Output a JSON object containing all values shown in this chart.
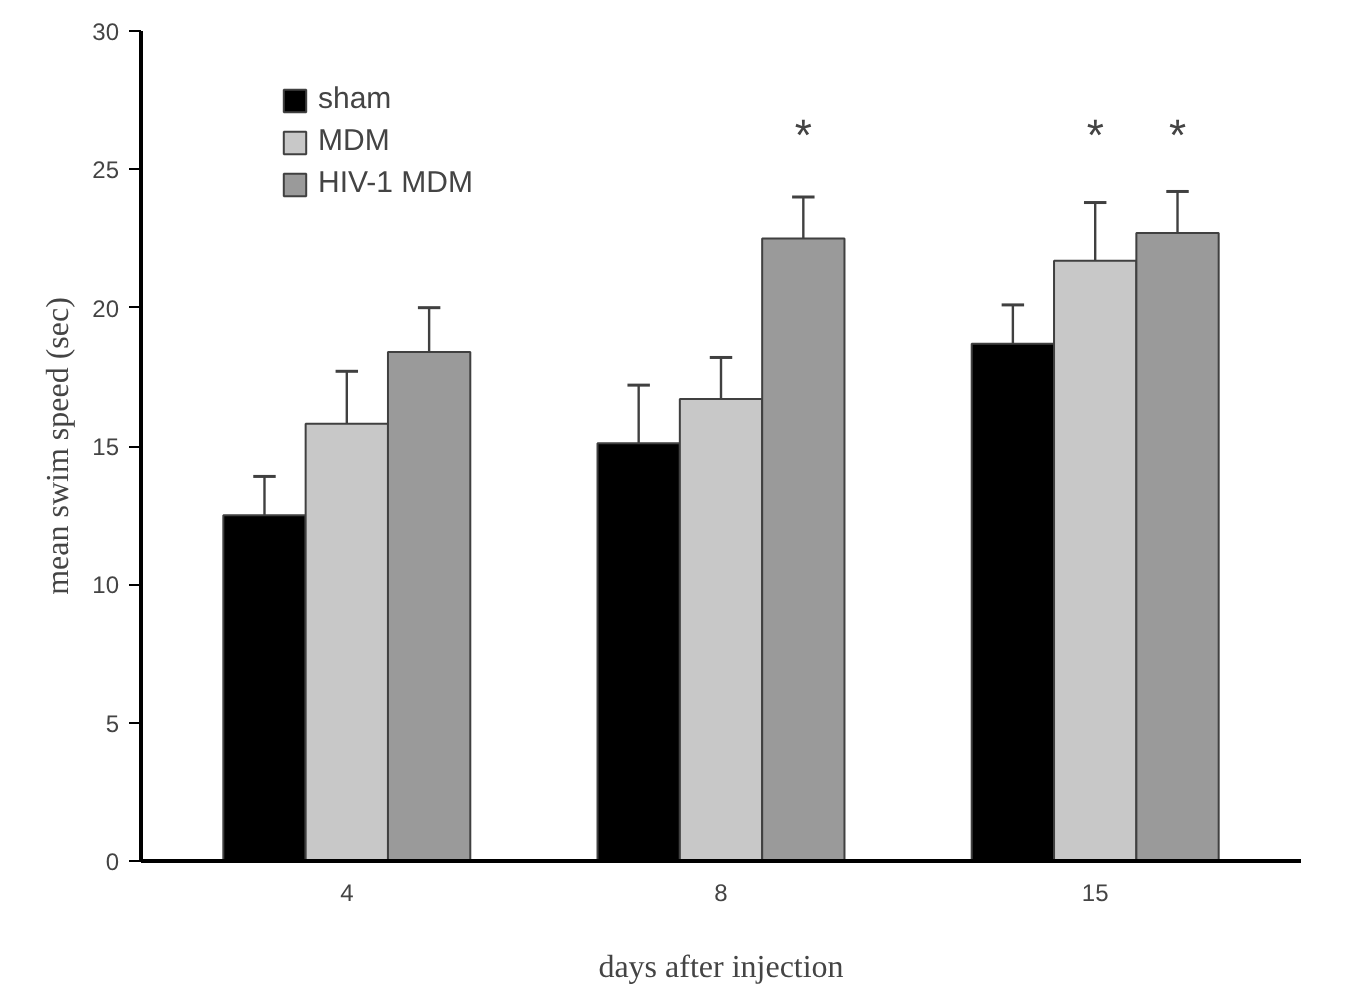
{
  "chart_data": {
    "type": "bar",
    "xlabel": "days after injection",
    "ylabel": "mean swim speed (sec)",
    "categories": [
      "4",
      "8",
      "15"
    ],
    "series": [
      {
        "name": "sham",
        "color": "#000000",
        "values": [
          12.5,
          15.1,
          18.7
        ],
        "errors": [
          [
            12.5,
            13.9
          ],
          [
            15.1,
            17.2
          ],
          [
            18.7,
            20.1
          ]
        ]
      },
      {
        "name": "MDM",
        "color": "#c8c8c8",
        "values": [
          15.8,
          16.7,
          21.7
        ],
        "errors": [
          [
            15.8,
            17.7
          ],
          [
            16.7,
            18.2
          ],
          [
            21.7,
            23.8
          ]
        ]
      },
      {
        "name": "HIV-1 MDM",
        "color": "#9a9a9a",
        "values": [
          18.4,
          22.5,
          22.7
        ],
        "errors": [
          [
            18.4,
            20.0
          ],
          [
            22.5,
            24.0
          ],
          [
            22.7,
            24.2
          ]
        ]
      }
    ],
    "ylim": [
      0,
      30
    ],
    "yticks": [
      0,
      5,
      10,
      15,
      20,
      25,
      30
    ],
    "grid": false,
    "legend": "top left",
    "annotations": [
      "*",
      "*",
      "*"
    ]
  }
}
